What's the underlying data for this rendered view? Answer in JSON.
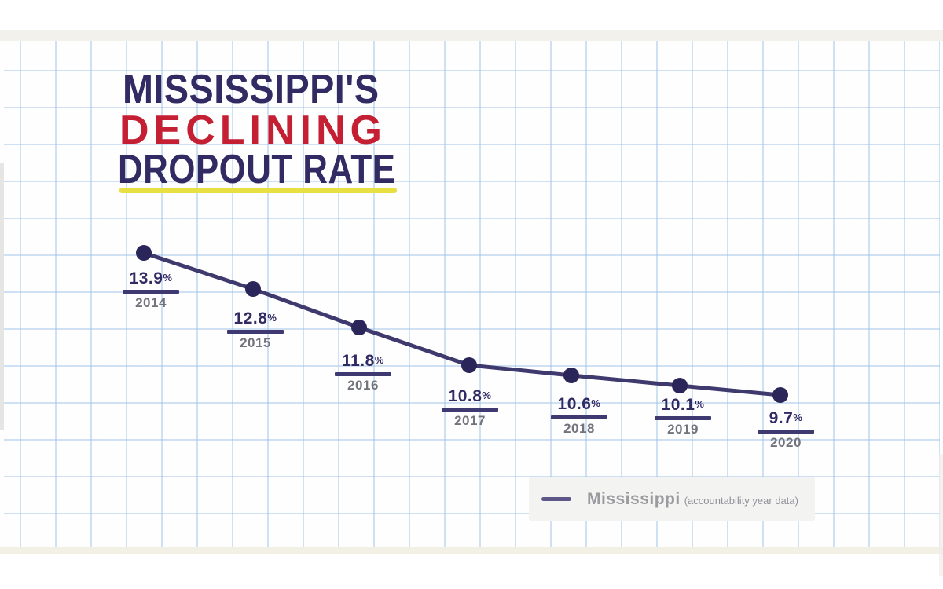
{
  "title": {
    "line1": "MISSISSIPPI'S",
    "line2": "DECLINING",
    "line3": "DROPOUT RATE"
  },
  "legend": {
    "label": "Mississippi",
    "note": "(accountability year data)"
  },
  "colors": {
    "navy": "#312a63",
    "red": "#c41f33",
    "yellow": "#e8df43",
    "line": "#3f3a6e",
    "marker": "#2b2659",
    "rule": "#3e3971",
    "year_gray": "#73737d",
    "grid_blue": "rgba(150,190,230,0.45)",
    "legend_bg": "#f3f3f2",
    "legend_text": "#9b9b9f",
    "legend_note": "#90909a",
    "legend_swatch": "#5c5787"
  },
  "chart_data": {
    "type": "line",
    "title": "Mississippi's Declining Dropout Rate",
    "categories": [
      "2014",
      "2015",
      "2016",
      "2017",
      "2018",
      "2019",
      "2020"
    ],
    "series": [
      {
        "name": "Mississippi (accountability year data)",
        "values": [
          13.9,
          12.8,
          11.8,
          10.8,
          10.6,
          10.1,
          9.7
        ]
      }
    ],
    "unit": "%",
    "data_label_format": "value% above underline with year beneath",
    "grid": "light-blue graph paper, no axes",
    "legend_position": "bottom-right",
    "markers": "filled circles"
  }
}
